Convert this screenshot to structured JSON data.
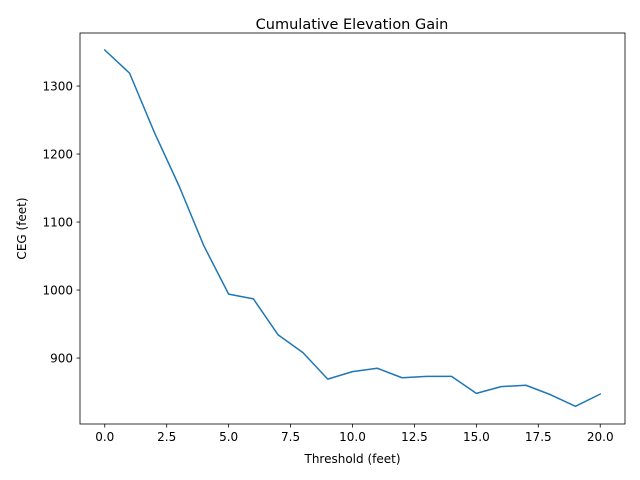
{
  "chart_data": {
    "type": "line",
    "title": "Cumulative Elevation Gain",
    "xlabel": "Threshold (feet)",
    "ylabel": "CEG (feet)",
    "xlim": [
      -1.0,
      21.0
    ],
    "ylim": [
      803,
      1378
    ],
    "x_ticks": [
      0.0,
      2.5,
      5.0,
      7.5,
      10.0,
      12.5,
      15.0,
      17.5,
      20.0
    ],
    "x_tick_labels": [
      "0.0",
      "2.5",
      "5.0",
      "7.5",
      "10.0",
      "12.5",
      "15.0",
      "17.5",
      "20.0"
    ],
    "y_ticks": [
      900,
      1000,
      1100,
      1200,
      1300
    ],
    "y_tick_labels": [
      "900",
      "1000",
      "1100",
      "1200",
      "1300"
    ],
    "grid": false,
    "legend": "none",
    "series": [
      {
        "color": "#1f77b4",
        "x": [
          0,
          1,
          2,
          3,
          4,
          5,
          6,
          7,
          8,
          9,
          10,
          11,
          12,
          13,
          14,
          15,
          16,
          17,
          18,
          19,
          20
        ],
        "y": [
          1353,
          1319,
          1232,
          1153,
          1065,
          994,
          987,
          934,
          908,
          869,
          880,
          885,
          871,
          873,
          873,
          848,
          858,
          860,
          846,
          829,
          847
        ]
      }
    ]
  }
}
